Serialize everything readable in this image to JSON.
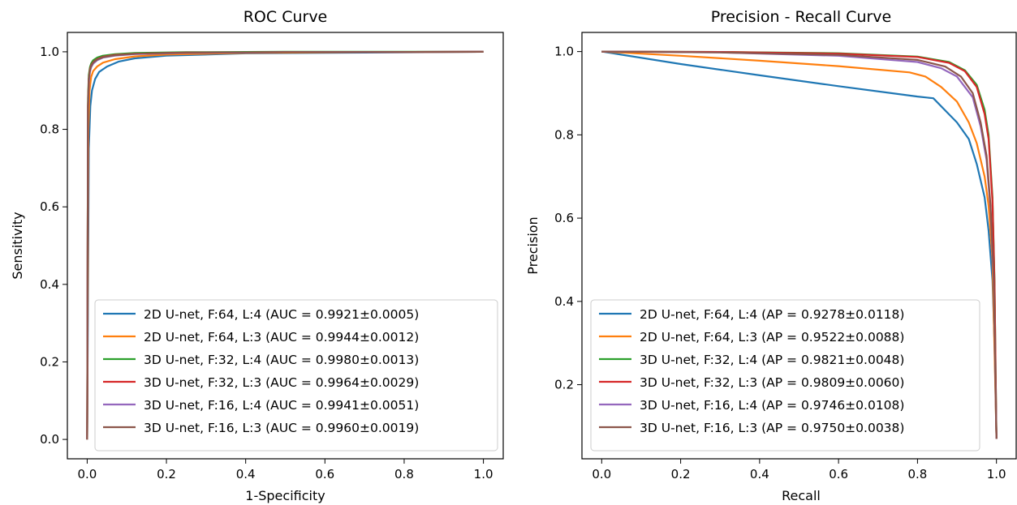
{
  "chart_data": [
    {
      "type": "line",
      "title": "ROC Curve",
      "xlabel": "1-Specificity",
      "ylabel": "Sensitivity",
      "xlim": [
        -0.05,
        1.05
      ],
      "ylim": [
        -0.05,
        1.05
      ],
      "xticks": [
        "0.0",
        "0.2",
        "0.4",
        "0.6",
        "0.8",
        "1.0"
      ],
      "yticks": [
        "0.0",
        "0.2",
        "0.4",
        "0.6",
        "0.8",
        "1.0"
      ],
      "grid": false,
      "legend_position": "lower-right",
      "series": [
        {
          "name": "2D U-net, F:64, L:4 (AUC = 0.9921±0.0005)",
          "color": "#1f77b4",
          "x": [
            0,
            0.004,
            0.008,
            0.012,
            0.02,
            0.03,
            0.05,
            0.08,
            0.12,
            0.2,
            0.4,
            0.7,
            1.0
          ],
          "y": [
            0,
            0.75,
            0.86,
            0.9,
            0.93,
            0.948,
            0.962,
            0.975,
            0.983,
            0.99,
            0.996,
            0.998,
            1.0
          ]
        },
        {
          "name": "2D U-net, F:64, L:3 (AUC = 0.9944±0.0012)",
          "color": "#ff7f0e",
          "x": [
            0,
            0.003,
            0.006,
            0.01,
            0.015,
            0.025,
            0.04,
            0.07,
            0.12,
            0.2,
            0.4,
            0.7,
            1.0
          ],
          "y": [
            0,
            0.8,
            0.9,
            0.935,
            0.95,
            0.962,
            0.972,
            0.981,
            0.988,
            0.993,
            0.997,
            0.999,
            1.0
          ]
        },
        {
          "name": "3D U-net, F:32, L:4 (AUC = 0.9980±0.0013)",
          "color": "#2ca02c",
          "x": [
            0,
            0.002,
            0.004,
            0.007,
            0.01,
            0.015,
            0.025,
            0.04,
            0.07,
            0.12,
            0.25,
            0.5,
            1.0
          ],
          "y": [
            0,
            0.88,
            0.94,
            0.96,
            0.97,
            0.978,
            0.985,
            0.99,
            0.994,
            0.997,
            0.999,
            1.0,
            1.0
          ]
        },
        {
          "name": "3D U-net, F:32, L:3 (AUC = 0.9964±0.0029)",
          "color": "#d62728",
          "x": [
            0,
            0.002,
            0.004,
            0.007,
            0.01,
            0.015,
            0.025,
            0.04,
            0.07,
            0.12,
            0.25,
            0.5,
            1.0
          ],
          "y": [
            0,
            0.86,
            0.93,
            0.955,
            0.965,
            0.973,
            0.981,
            0.987,
            0.992,
            0.995,
            0.998,
            0.999,
            1.0
          ]
        },
        {
          "name": "3D U-net, F:16, L:4 (AUC = 0.9941±0.0051)",
          "color": "#9467bd",
          "x": [
            0,
            0.002,
            0.004,
            0.007,
            0.01,
            0.015,
            0.025,
            0.04,
            0.07,
            0.12,
            0.25,
            0.5,
            1.0
          ],
          "y": [
            0,
            0.85,
            0.92,
            0.948,
            0.96,
            0.969,
            0.978,
            0.985,
            0.99,
            0.994,
            0.997,
            0.999,
            1.0
          ]
        },
        {
          "name": "3D U-net, F:16, L:3 (AUC = 0.9960±0.0019)",
          "color": "#8c564b",
          "x": [
            0,
            0.002,
            0.004,
            0.007,
            0.01,
            0.015,
            0.025,
            0.04,
            0.07,
            0.12,
            0.25,
            0.5,
            1.0
          ],
          "y": [
            0,
            0.86,
            0.93,
            0.953,
            0.963,
            0.972,
            0.98,
            0.986,
            0.991,
            0.995,
            0.998,
            0.999,
            1.0
          ]
        }
      ]
    },
    {
      "type": "line",
      "title": "Precision - Recall Curve",
      "xlabel": "Recall",
      "ylabel": "Precision",
      "xlim": [
        -0.05,
        1.05
      ],
      "ylim": [
        0.022,
        1.046
      ],
      "xticks": [
        "0.0",
        "0.2",
        "0.4",
        "0.6",
        "0.8",
        "1.0"
      ],
      "yticks": [
        "0.2",
        "0.4",
        "0.6",
        "0.8",
        "1.0"
      ],
      "grid": false,
      "legend_position": "lower-right",
      "series": [
        {
          "name": "2D U-net, F:64, L:4 (AP = 0.9278±0.0118)",
          "color": "#1f77b4",
          "x": [
            0,
            0.2,
            0.4,
            0.6,
            0.8,
            0.84,
            0.9,
            0.93,
            0.95,
            0.97,
            0.98,
            0.99,
            0.995,
            1.0
          ],
          "y": [
            1.0,
            0.97,
            0.943,
            0.917,
            0.892,
            0.888,
            0.83,
            0.79,
            0.73,
            0.65,
            0.57,
            0.45,
            0.3,
            0.07
          ]
        },
        {
          "name": "2D U-net, F:64, L:3 (AP = 0.9522±0.0088)",
          "color": "#ff7f0e",
          "x": [
            0,
            0.2,
            0.4,
            0.6,
            0.78,
            0.82,
            0.86,
            0.9,
            0.93,
            0.95,
            0.97,
            0.98,
            0.99,
            1.0
          ],
          "y": [
            1.0,
            0.99,
            0.978,
            0.965,
            0.95,
            0.94,
            0.915,
            0.88,
            0.83,
            0.78,
            0.7,
            0.63,
            0.5,
            0.07
          ]
        },
        {
          "name": "3D U-net, F:32, L:4 (AP = 0.9821±0.0048)",
          "color": "#2ca02c",
          "x": [
            0,
            0.3,
            0.6,
            0.8,
            0.88,
            0.92,
            0.95,
            0.97,
            0.98,
            0.99,
            0.995,
            1.0
          ],
          "y": [
            1.0,
            0.999,
            0.996,
            0.988,
            0.975,
            0.955,
            0.92,
            0.86,
            0.8,
            0.65,
            0.45,
            0.07
          ]
        },
        {
          "name": "3D U-net, F:32, L:3 (AP = 0.9809±0.0060)",
          "color": "#d62728",
          "x": [
            0,
            0.3,
            0.6,
            0.8,
            0.88,
            0.92,
            0.95,
            0.97,
            0.98,
            0.99,
            0.995,
            1.0
          ],
          "y": [
            1.0,
            0.999,
            0.995,
            0.987,
            0.973,
            0.953,
            0.915,
            0.85,
            0.79,
            0.64,
            0.44,
            0.07
          ]
        },
        {
          "name": "3D U-net, F:16, L:4 (AP = 0.9746±0.0108)",
          "color": "#9467bd",
          "x": [
            0,
            0.3,
            0.6,
            0.8,
            0.86,
            0.9,
            0.94,
            0.96,
            0.975,
            0.985,
            0.993,
            1.0
          ],
          "y": [
            1.0,
            0.998,
            0.99,
            0.975,
            0.96,
            0.94,
            0.89,
            0.82,
            0.74,
            0.62,
            0.45,
            0.07
          ]
        },
        {
          "name": "3D U-net, F:16, L:3 (AP = 0.9750±0.0038)",
          "color": "#8c564b",
          "x": [
            0,
            0.3,
            0.6,
            0.8,
            0.87,
            0.91,
            0.94,
            0.96,
            0.975,
            0.985,
            0.993,
            1.0
          ],
          "y": [
            1.0,
            0.998,
            0.992,
            0.98,
            0.964,
            0.94,
            0.9,
            0.83,
            0.75,
            0.63,
            0.46,
            0.07
          ]
        }
      ]
    }
  ]
}
